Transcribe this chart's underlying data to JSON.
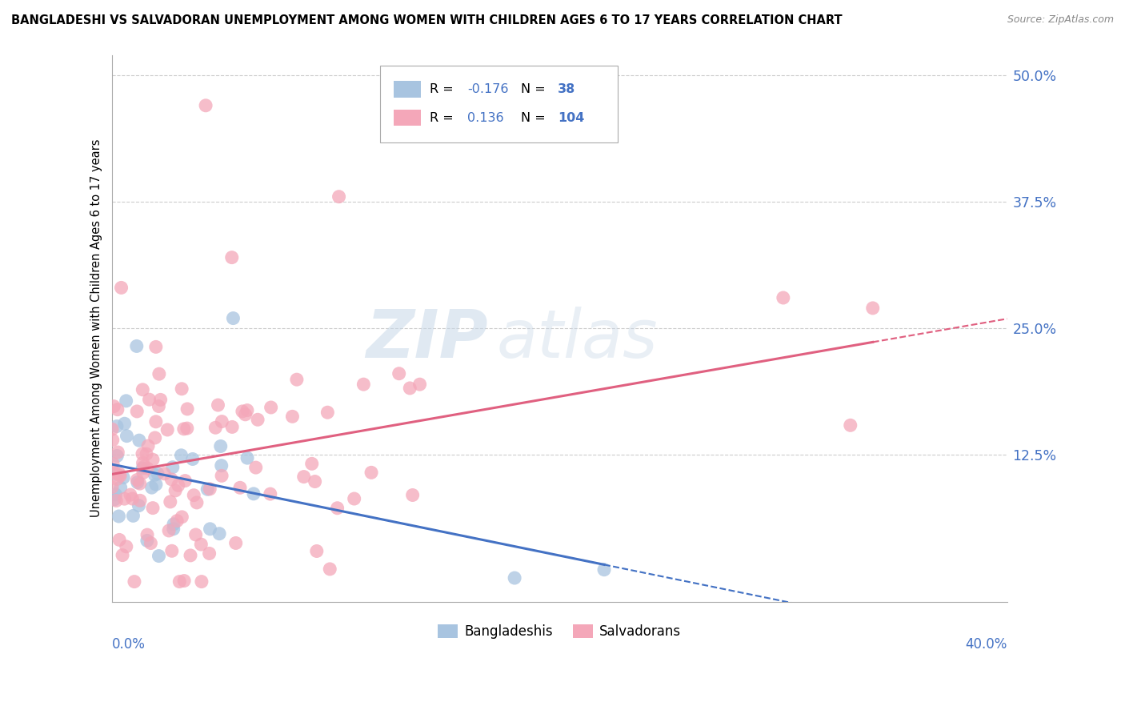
{
  "title": "BANGLADESHI VS SALVADORAN UNEMPLOYMENT AMONG WOMEN WITH CHILDREN AGES 6 TO 17 YEARS CORRELATION CHART",
  "source": "Source: ZipAtlas.com",
  "ylabel": "Unemployment Among Women with Children Ages 6 to 17 years",
  "xlim": [
    0.0,
    0.4
  ],
  "ylim": [
    -0.02,
    0.52
  ],
  "ytick_labels": [
    "12.5%",
    "25.0%",
    "37.5%",
    "50.0%"
  ],
  "ytick_values": [
    0.125,
    0.25,
    0.375,
    0.5
  ],
  "legend_r_bangladeshi": "-0.176",
  "legend_n_bangladeshi": "38",
  "legend_r_salvadoran": "0.136",
  "legend_n_salvadoran": "104",
  "bangladeshi_color": "#a8c4e0",
  "salvadoran_color": "#f4a7b9",
  "trend_bangladeshi_color": "#4472c4",
  "trend_salvadoran_color": "#e06080",
  "watermark_zip": "ZIP",
  "watermark_atlas": "atlas",
  "n_bangladeshi": 38,
  "n_salvadoran": 104,
  "r_bangladeshi": -0.176,
  "r_salvadoran": 0.136,
  "seed": 77
}
